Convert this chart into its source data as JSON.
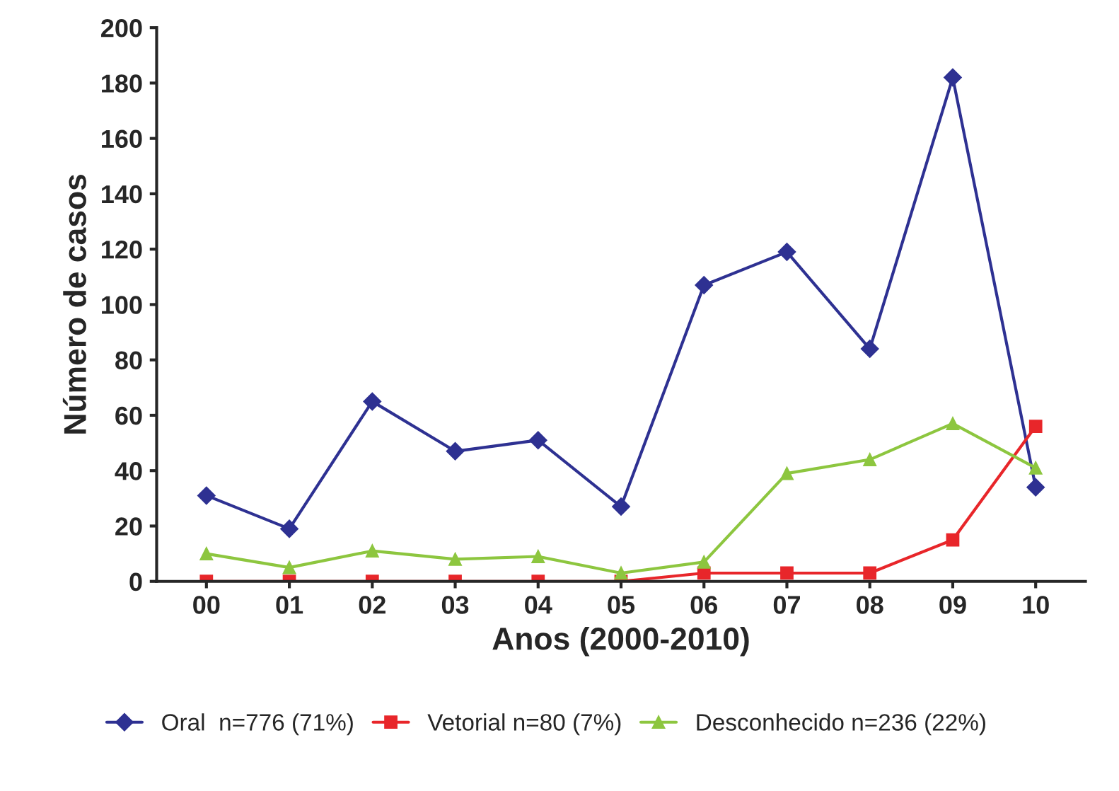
{
  "chart_data": {
    "type": "line",
    "xlabel": "Anos (2000-2010)",
    "ylabel": "Número de casos",
    "categories": [
      "00",
      "01",
      "02",
      "03",
      "04",
      "05",
      "06",
      "07",
      "08",
      "09",
      "10"
    ],
    "ylim": [
      0,
      200
    ],
    "yticks": [
      0,
      20,
      40,
      60,
      80,
      100,
      120,
      140,
      160,
      180,
      200
    ],
    "grid": false,
    "legend": "bottom",
    "series": [
      {
        "name": "Oral  n=776 (71%)",
        "color": "#2e3192",
        "marker": "diamond",
        "values": [
          31,
          19,
          65,
          47,
          51,
          27,
          107,
          119,
          84,
          182,
          34
        ]
      },
      {
        "name": "Vetorial n=80 (7%)",
        "color": "#e8262a",
        "marker": "square",
        "values": [
          0,
          0,
          0,
          0,
          0,
          0,
          3,
          3,
          3,
          15,
          56
        ]
      },
      {
        "name": "Desconhecido n=236 (22%)",
        "color": "#8dc63f",
        "marker": "triangle",
        "values": [
          10,
          5,
          11,
          8,
          9,
          3,
          7,
          39,
          44,
          57,
          41
        ]
      }
    ]
  }
}
